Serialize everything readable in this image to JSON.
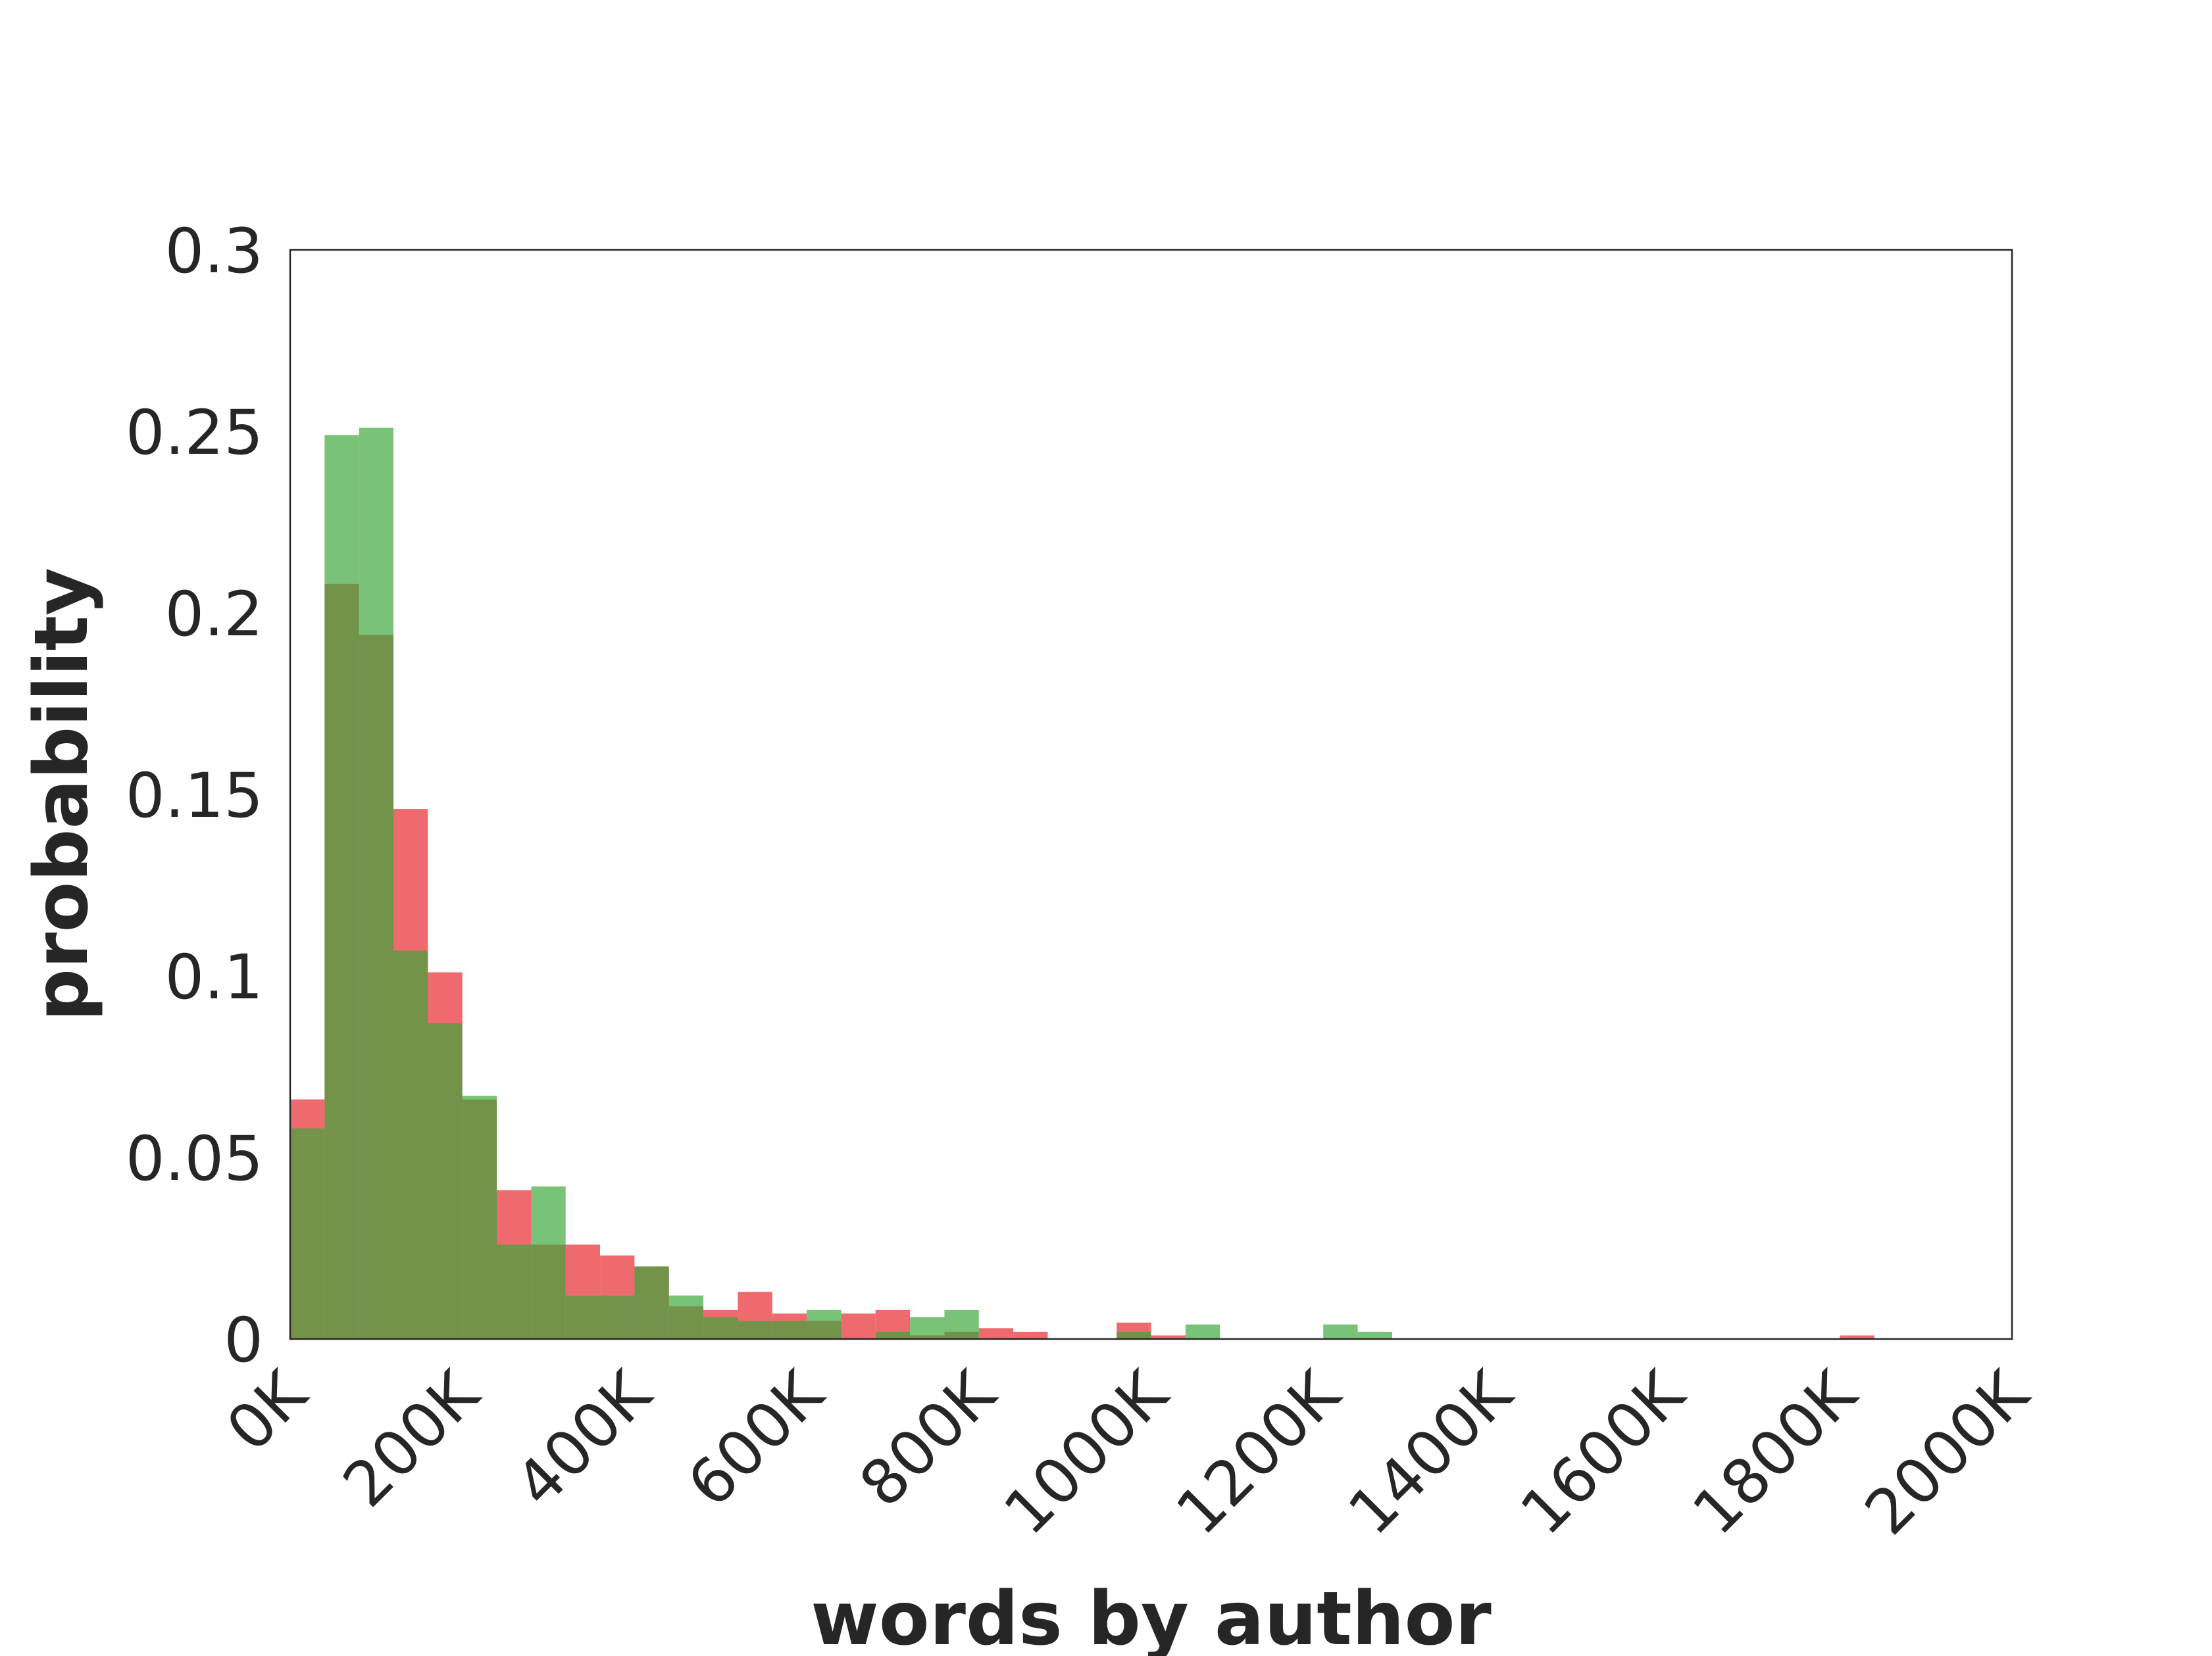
{
  "chart_data": {
    "type": "bar",
    "title": "",
    "xlabel": "words by author",
    "ylabel": "probability",
    "xlim": [
      0,
      2000000
    ],
    "ylim": [
      0,
      0.3
    ],
    "x_tick_values": [
      0,
      200000,
      400000,
      600000,
      800000,
      1000000,
      1200000,
      1400000,
      1600000,
      1800000,
      2000000
    ],
    "x_tick_labels": [
      "0K",
      "200K",
      "400K",
      "600K",
      "800K",
      "1000K",
      "1200K",
      "1400K",
      "1600K",
      "1800K",
      "2000K"
    ],
    "y_tick_values": [
      0,
      0.05,
      0.1,
      0.15,
      0.2,
      0.25,
      0.3
    ],
    "y_tick_labels": [
      "0",
      "0.05",
      "0.1",
      "0.15",
      "0.2",
      "0.25",
      "0.3"
    ],
    "grid": false,
    "legend": "none",
    "bin_width": 40000,
    "bin_starts": [
      0,
      40000,
      80000,
      120000,
      160000,
      200000,
      240000,
      280000,
      320000,
      360000,
      400000,
      440000,
      480000,
      520000,
      560000,
      600000,
      640000,
      680000,
      720000,
      760000,
      800000,
      840000,
      880000,
      920000,
      960000,
      1000000,
      1040000,
      1080000,
      1120000,
      1160000,
      1200000,
      1240000,
      1280000,
      1320000,
      1360000,
      1400000,
      1440000,
      1480000,
      1520000,
      1560000,
      1600000,
      1640000,
      1680000,
      1720000,
      1760000,
      1800000,
      1840000,
      1880000,
      1920000,
      1960000
    ],
    "overlap_color": "#748b3e",
    "series": [
      {
        "color": "#e8242b",
        "opacity": 0.68,
        "values": [
          0.066,
          0.208,
          0.194,
          0.146,
          0.101,
          0.066,
          0.041,
          0.026,
          0.026,
          0.023,
          0.02,
          0.009,
          0.008,
          0.013,
          0.007,
          0.005,
          0.007,
          0.008,
          0.001,
          0.002,
          0.003,
          0.002,
          0.0,
          0.0,
          0.0045,
          0.001,
          0.0,
          0.0,
          0.0,
          0.0,
          0.0,
          0.0,
          0.0,
          0.0,
          0.0,
          0.0,
          0.0,
          0.0,
          0.0,
          0.0,
          0.0,
          0.0,
          0.0,
          0.0,
          0.0,
          0.001,
          0.0,
          0.0,
          0.0,
          0.0
        ]
      },
      {
        "color": "#3aa63a",
        "opacity": 0.68,
        "values": [
          0.058,
          0.249,
          0.251,
          0.107,
          0.087,
          0.067,
          0.026,
          0.042,
          0.012,
          0.012,
          0.02,
          0.012,
          0.006,
          0.005,
          0.005,
          0.008,
          0.0,
          0.002,
          0.006,
          0.008,
          0.0,
          0.0,
          0.0,
          0.0,
          0.002,
          0.0,
          0.004,
          0.0,
          0.0,
          0.0,
          0.004,
          0.002,
          0.0,
          0.0,
          0.0,
          0.0,
          0.0,
          0.0,
          0.0,
          0.0,
          0.0,
          0.0,
          0.0,
          0.0,
          0.0,
          0.0,
          0.0,
          0.0,
          0.0,
          0.0
        ]
      }
    ]
  }
}
